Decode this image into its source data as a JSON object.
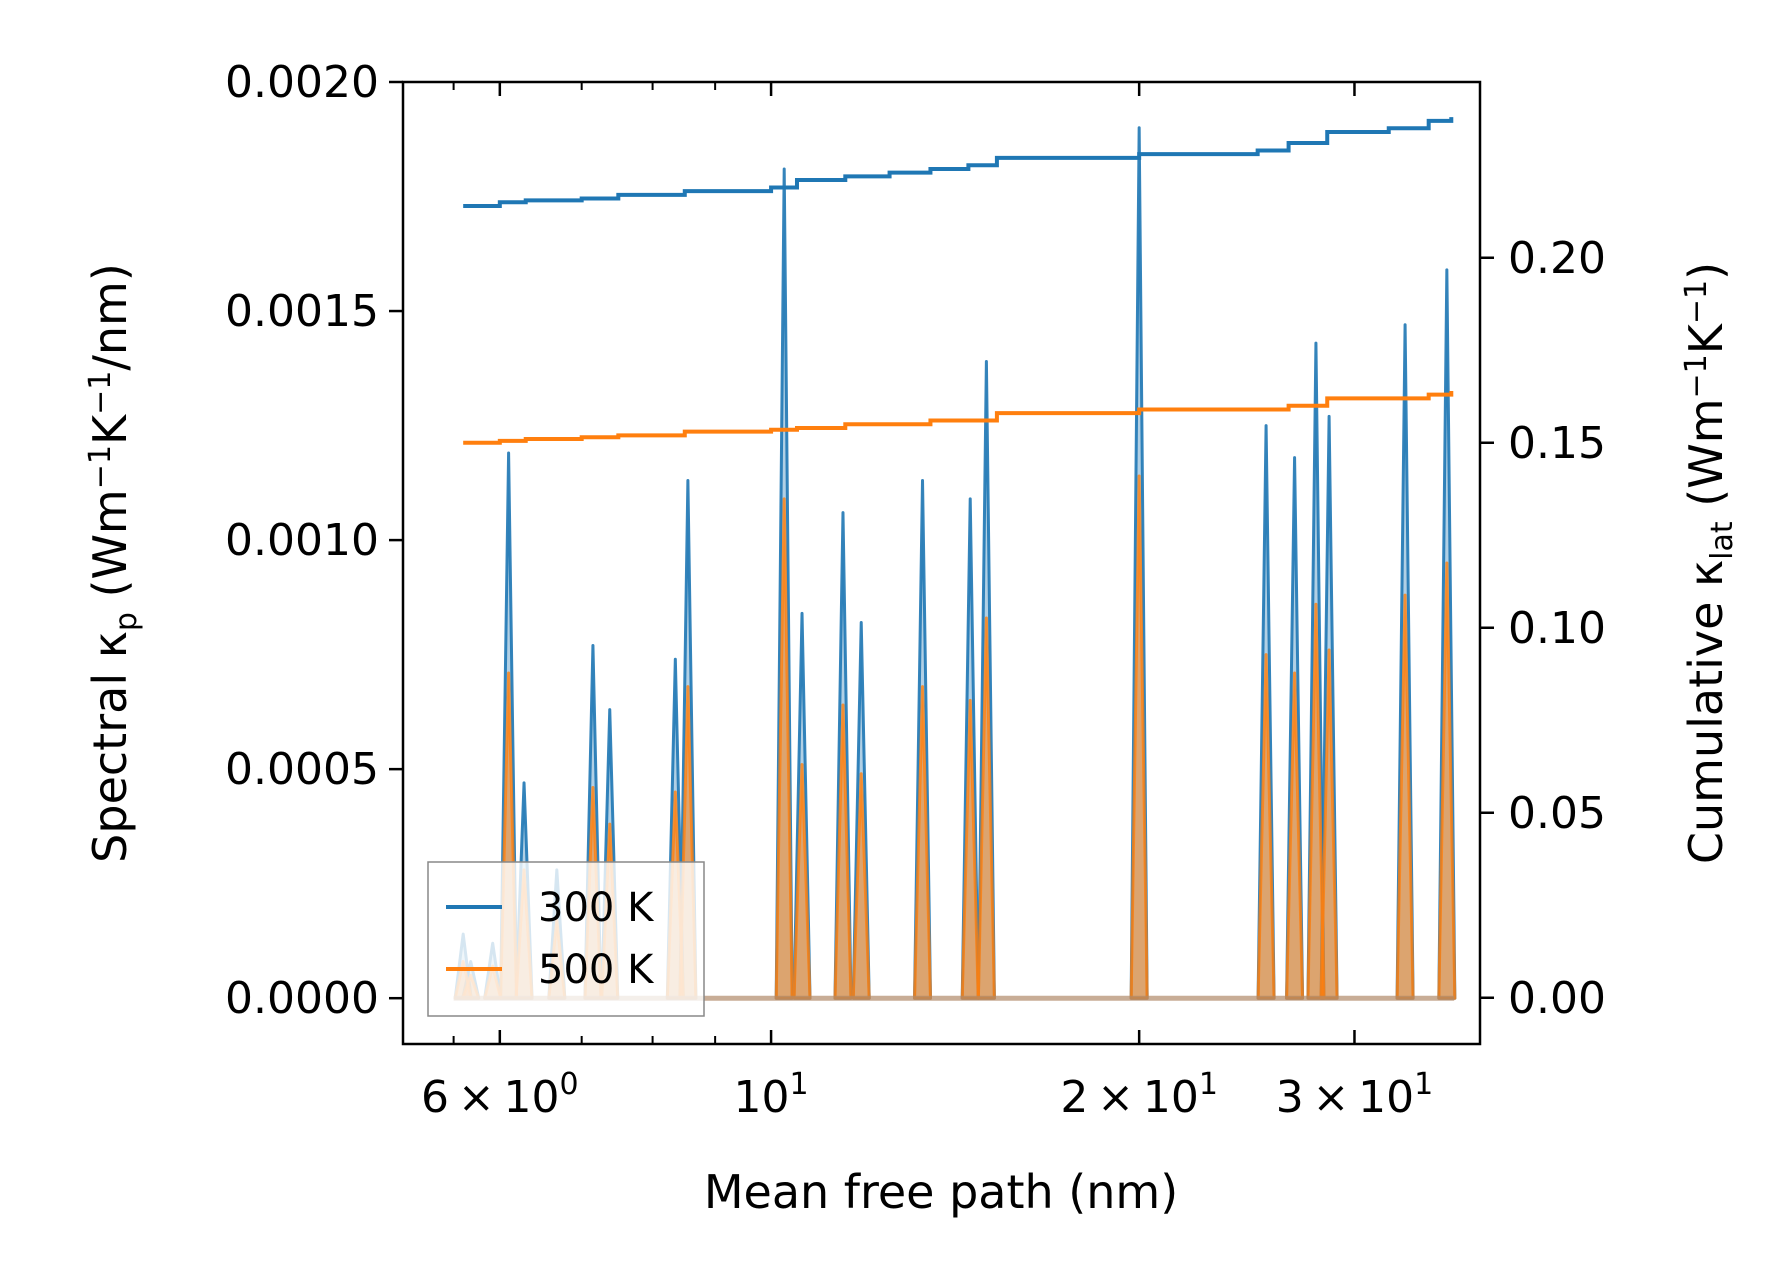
{
  "chart_data": {
    "type": "line",
    "x_scale": "log",
    "xlim": [
      5.0,
      38.0
    ],
    "ylim_left": [
      -0.0001,
      0.002
    ],
    "ylim_right": [
      -0.0125,
      0.2475
    ],
    "xlabel": "Mean free path (nm)",
    "ylabel_left": "Spectral κ",
    "ylabel_left_sub": "p",
    "ylabel_left_unit_a": "(Wm",
    "ylabel_left_unit_b": "K",
    "ylabel_left_unit_c": "/nm)",
    "ylabel_right": "Cumulative κ",
    "ylabel_right_sub": "lat",
    "ylabel_right_unit_a": "(Wm",
    "ylabel_right_unit_b": "K",
    "ylabel_right_unit_c": ")",
    "unit_exponent": "−1",
    "x_ticks": [
      {
        "value": 6,
        "mant": "6",
        "base": "10",
        "exp": "0"
      },
      {
        "value": 10,
        "mant": "",
        "base": "10",
        "exp": "1"
      },
      {
        "value": 20,
        "mant": "2",
        "base": "10",
        "exp": "1"
      },
      {
        "value": 30,
        "mant": "3",
        "base": "10",
        "exp": "1"
      }
    ],
    "x_minor_ticks": [
      5.5,
      7,
      8,
      9,
      40
    ],
    "times_symbol": "×",
    "y_left_ticks": [
      {
        "value": 0.0,
        "label": "0.0000"
      },
      {
        "value": 0.0005,
        "label": "0.0005"
      },
      {
        "value": 0.001,
        "label": "0.0010"
      },
      {
        "value": 0.0015,
        "label": "0.0015"
      },
      {
        "value": 0.002,
        "label": "0.0020"
      }
    ],
    "y_right_ticks": [
      {
        "value": 0.0,
        "label": "0.00"
      },
      {
        "value": 0.05,
        "label": "0.05"
      },
      {
        "value": 0.1,
        "label": "0.10"
      },
      {
        "value": 0.15,
        "label": "0.15"
      },
      {
        "value": 0.2,
        "label": "0.20"
      }
    ],
    "series": [
      {
        "name": "300 K",
        "color": "#1f77b4",
        "spectral_peaks": [
          {
            "x": 5.6,
            "y": 0.00014
          },
          {
            "x": 5.68,
            "y": 8e-05
          },
          {
            "x": 5.92,
            "y": 0.00012
          },
          {
            "x": 6.1,
            "y": 0.00119
          },
          {
            "x": 6.28,
            "y": 0.00047
          },
          {
            "x": 6.68,
            "y": 0.00028
          },
          {
            "x": 7.15,
            "y": 0.00077
          },
          {
            "x": 7.38,
            "y": 0.00063
          },
          {
            "x": 8.35,
            "y": 0.00074
          },
          {
            "x": 8.55,
            "y": 0.00113
          },
          {
            "x": 10.25,
            "y": 0.00181
          },
          {
            "x": 10.6,
            "y": 0.00084
          },
          {
            "x": 11.45,
            "y": 0.00106
          },
          {
            "x": 11.85,
            "y": 0.00082
          },
          {
            "x": 13.3,
            "y": 0.00113
          },
          {
            "x": 14.55,
            "y": 0.00109
          },
          {
            "x": 15.0,
            "y": 0.00139
          },
          {
            "x": 20.0,
            "y": 0.0019
          },
          {
            "x": 25.4,
            "y": 0.00125
          },
          {
            "x": 26.8,
            "y": 0.00118
          },
          {
            "x": 27.9,
            "y": 0.00143
          },
          {
            "x": 28.6,
            "y": 0.00127
          },
          {
            "x": 33.0,
            "y": 0.00147
          },
          {
            "x": 35.7,
            "y": 0.00159
          }
        ],
        "cumulative": [
          {
            "x": 5.6,
            "y": 0.214
          },
          {
            "x": 6.0,
            "y": 0.215
          },
          {
            "x": 6.3,
            "y": 0.2155
          },
          {
            "x": 7.0,
            "y": 0.216
          },
          {
            "x": 7.5,
            "y": 0.217
          },
          {
            "x": 8.5,
            "y": 0.218
          },
          {
            "x": 10.0,
            "y": 0.219
          },
          {
            "x": 10.5,
            "y": 0.221
          },
          {
            "x": 11.5,
            "y": 0.222
          },
          {
            "x": 12.5,
            "y": 0.223
          },
          {
            "x": 13.5,
            "y": 0.224
          },
          {
            "x": 14.5,
            "y": 0.225
          },
          {
            "x": 15.3,
            "y": 0.227
          },
          {
            "x": 20.0,
            "y": 0.228
          },
          {
            "x": 25.0,
            "y": 0.229
          },
          {
            "x": 26.5,
            "y": 0.231
          },
          {
            "x": 28.5,
            "y": 0.234
          },
          {
            "x": 32.0,
            "y": 0.235
          },
          {
            "x": 34.5,
            "y": 0.237
          },
          {
            "x": 36.0,
            "y": 0.238
          }
        ]
      },
      {
        "name": "500 K",
        "color": "#ff7f0e",
        "spectral_peaks": [
          {
            "x": 5.6,
            "y": 8e-05
          },
          {
            "x": 5.68,
            "y": 5e-05
          },
          {
            "x": 5.92,
            "y": 7e-05
          },
          {
            "x": 6.1,
            "y": 0.00071
          },
          {
            "x": 6.28,
            "y": 0.00028
          },
          {
            "x": 6.68,
            "y": 0.00017
          },
          {
            "x": 7.15,
            "y": 0.00046
          },
          {
            "x": 7.38,
            "y": 0.00038
          },
          {
            "x": 8.35,
            "y": 0.00045
          },
          {
            "x": 8.55,
            "y": 0.00068
          },
          {
            "x": 10.25,
            "y": 0.00109
          },
          {
            "x": 10.6,
            "y": 0.00051
          },
          {
            "x": 11.45,
            "y": 0.00064
          },
          {
            "x": 11.85,
            "y": 0.00049
          },
          {
            "x": 13.3,
            "y": 0.00068
          },
          {
            "x": 14.55,
            "y": 0.00065
          },
          {
            "x": 15.0,
            "y": 0.00083
          },
          {
            "x": 20.0,
            "y": 0.00114
          },
          {
            "x": 25.4,
            "y": 0.00075
          },
          {
            "x": 26.8,
            "y": 0.00071
          },
          {
            "x": 27.9,
            "y": 0.00086
          },
          {
            "x": 28.6,
            "y": 0.00076
          },
          {
            "x": 33.0,
            "y": 0.00088
          },
          {
            "x": 35.7,
            "y": 0.00095
          }
        ],
        "cumulative": [
          {
            "x": 5.6,
            "y": 0.15
          },
          {
            "x": 6.0,
            "y": 0.1505
          },
          {
            "x": 6.3,
            "y": 0.151
          },
          {
            "x": 7.0,
            "y": 0.1515
          },
          {
            "x": 7.5,
            "y": 0.152
          },
          {
            "x": 8.5,
            "y": 0.153
          },
          {
            "x": 10.0,
            "y": 0.1535
          },
          {
            "x": 10.5,
            "y": 0.154
          },
          {
            "x": 11.5,
            "y": 0.155
          },
          {
            "x": 12.5,
            "y": 0.155
          },
          {
            "x": 13.5,
            "y": 0.156
          },
          {
            "x": 14.5,
            "y": 0.156
          },
          {
            "x": 15.3,
            "y": 0.158
          },
          {
            "x": 20.0,
            "y": 0.159
          },
          {
            "x": 25.0,
            "y": 0.159
          },
          {
            "x": 26.5,
            "y": 0.16
          },
          {
            "x": 28.5,
            "y": 0.162
          },
          {
            "x": 32.0,
            "y": 0.162
          },
          {
            "x": 34.5,
            "y": 0.163
          },
          {
            "x": 36.0,
            "y": 0.164
          }
        ]
      }
    ],
    "legend": {
      "location": "lower-left",
      "entries": [
        "300 K",
        "500 K"
      ]
    }
  }
}
